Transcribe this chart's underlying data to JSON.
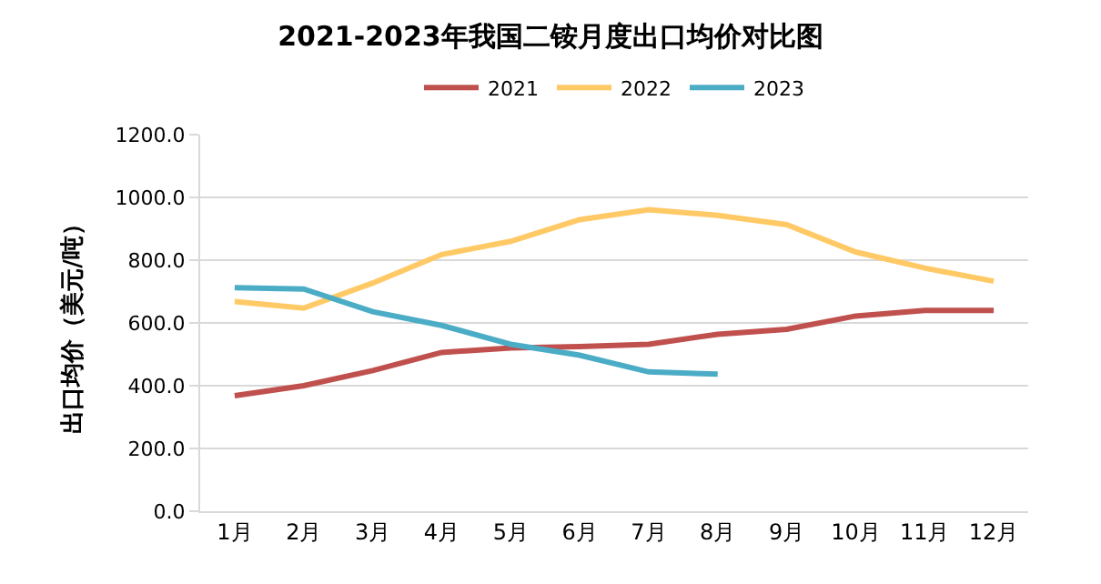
{
  "chart_data": {
    "type": "line",
    "title": "2021-2023年我国二铵月度出口均价对比图",
    "ylabel": "出口均价（美元/吨）",
    "categories": [
      "1月",
      "2月",
      "3月",
      "4月",
      "5月",
      "6月",
      "7月",
      "8月",
      "9月",
      "10月",
      "11月",
      "12月"
    ],
    "series": [
      {
        "name": "2021",
        "color": "#c0504d",
        "values": [
          368,
          400,
          448,
          506,
          520,
          525,
          532,
          564,
          580,
          622,
          640,
          640
        ]
      },
      {
        "name": "2022",
        "color": "#ffc966",
        "values": [
          668,
          647,
          727,
          818,
          860,
          929,
          961,
          943,
          913,
          826,
          775,
          733
        ]
      },
      {
        "name": "2023",
        "color": "#4bacc6",
        "values": [
          712,
          708,
          636,
          592,
          532,
          497,
          444,
          437,
          null,
          null,
          null,
          null
        ]
      }
    ],
    "ylim": [
      0,
      1200
    ],
    "yticks": [
      {
        "value": 0,
        "label": "0.0"
      },
      {
        "value": 200,
        "label": "200.0"
      },
      {
        "value": 400,
        "label": "400.0"
      },
      {
        "value": 600,
        "label": "600.0"
      },
      {
        "value": 800,
        "label": "800.0"
      },
      {
        "value": 1000,
        "label": "1000.0"
      },
      {
        "value": 1200,
        "label": "1200.0"
      }
    ],
    "grid": "y",
    "legend": "top",
    "marker": "none",
    "line_style": "solid"
  }
}
